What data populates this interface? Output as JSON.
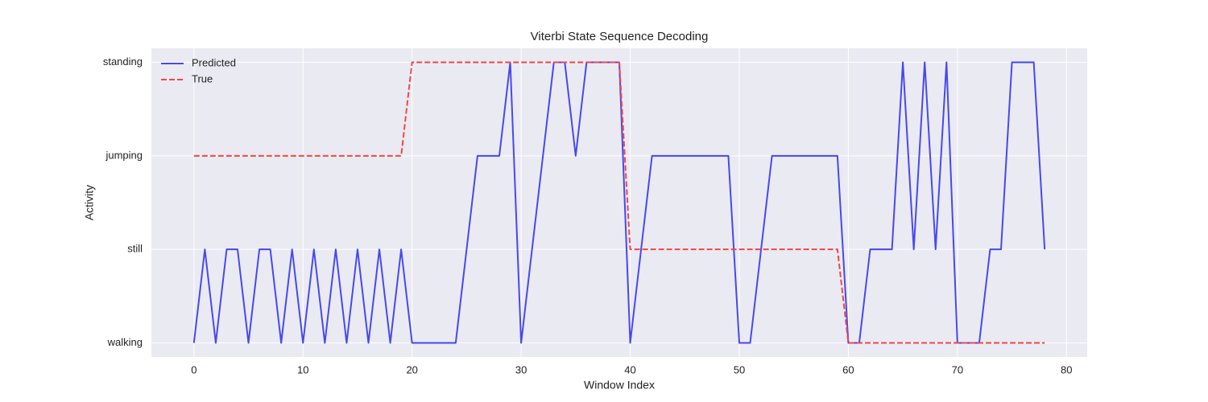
{
  "chart_data": {
    "type": "line",
    "title": "Viterbi State Sequence Decoding",
    "x_label": "Window Index",
    "y_label": "Activity",
    "x": [
      0,
      1,
      2,
      3,
      4,
      5,
      6,
      7,
      8,
      9,
      10,
      11,
      12,
      13,
      14,
      15,
      16,
      17,
      18,
      19,
      20,
      21,
      22,
      23,
      24,
      25,
      26,
      27,
      28,
      29,
      30,
      31,
      32,
      33,
      34,
      35,
      36,
      37,
      38,
      39,
      40,
      41,
      42,
      43,
      44,
      45,
      46,
      47,
      48,
      49,
      50,
      51,
      52,
      53,
      54,
      55,
      56,
      57,
      58,
      59,
      60,
      61,
      62,
      63,
      64,
      65,
      66,
      67,
      68,
      69,
      70,
      71,
      72,
      73,
      74,
      75,
      76,
      77,
      78
    ],
    "series": [
      {
        "name": "Predicted",
        "color": "#4848f0",
        "linestyle": "solid",
        "values": [
          0,
          1,
          0,
          1,
          1,
          0,
          1,
          1,
          0,
          1,
          0,
          1,
          0,
          1,
          0,
          1,
          0,
          1,
          0,
          1,
          0,
          0,
          0,
          0,
          0,
          1,
          2,
          2,
          2,
          3,
          0,
          1,
          2,
          3,
          3,
          2,
          3,
          3,
          3,
          3,
          0,
          1,
          2,
          2,
          2,
          2,
          2,
          2,
          2,
          2,
          0,
          0,
          1,
          2,
          2,
          2,
          2,
          2,
          2,
          2,
          0,
          0,
          1,
          1,
          1,
          3,
          1,
          3,
          1,
          3,
          0,
          0,
          0,
          1,
          1,
          3,
          3,
          3,
          1
        ]
      },
      {
        "name": "True",
        "color": "#f04848",
        "linestyle": "dashed",
        "values": [
          2,
          2,
          2,
          2,
          2,
          2,
          2,
          2,
          2,
          2,
          2,
          2,
          2,
          2,
          2,
          2,
          2,
          2,
          2,
          2,
          3,
          3,
          3,
          3,
          3,
          3,
          3,
          3,
          3,
          3,
          3,
          3,
          3,
          3,
          3,
          3,
          3,
          3,
          3,
          3,
          1,
          1,
          1,
          1,
          1,
          1,
          1,
          1,
          1,
          1,
          1,
          1,
          1,
          1,
          1,
          1,
          1,
          1,
          1,
          1,
          0,
          0,
          0,
          0,
          0,
          0,
          0,
          0,
          0,
          0,
          0,
          0,
          0,
          0,
          0,
          0,
          0,
          0,
          0
        ]
      }
    ],
    "xlim": [
      -3.9,
      81.9
    ],
    "xticks": [
      0,
      10,
      20,
      30,
      40,
      50,
      60,
      70,
      80
    ],
    "ylim": [
      -0.15,
      3.15
    ],
    "yticks": [
      {
        "value": 0,
        "label": "walking"
      },
      {
        "value": 1,
        "label": "still"
      },
      {
        "value": 2,
        "label": "jumping"
      },
      {
        "value": 3,
        "label": "standing"
      }
    ],
    "grid": true,
    "legend_position": "upper-left"
  }
}
